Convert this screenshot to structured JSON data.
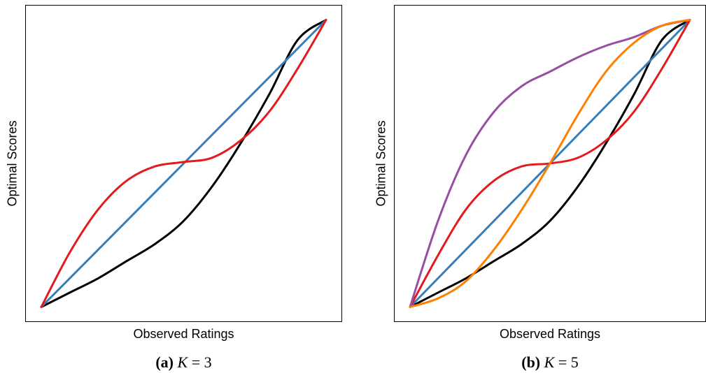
{
  "chart_data": [
    {
      "type": "line",
      "caption": {
        "tag": "(a)",
        "var": "K",
        "eq": " = ",
        "val": "3"
      },
      "xlabel": "Observed Ratings",
      "ylabel": "Optimal Scores",
      "xlim": [
        0,
        1
      ],
      "ylim": [
        -0.05,
        1.05
      ],
      "grid": false,
      "series": [
        {
          "color": "#000000",
          "x": [
            0,
            0.1,
            0.2,
            0.3,
            0.4,
            0.5,
            0.6,
            0.7,
            0.8,
            0.9,
            1.0
          ],
          "y": [
            0,
            0.05,
            0.1,
            0.16,
            0.22,
            0.3,
            0.42,
            0.57,
            0.74,
            0.93,
            1.0
          ]
        },
        {
          "color": "#377eb8",
          "x": [
            0,
            1
          ],
          "y": [
            0,
            1
          ]
        },
        {
          "color": "#e41a1c",
          "x": [
            0,
            0.1,
            0.2,
            0.3,
            0.4,
            0.5,
            0.6,
            0.7,
            0.8,
            0.9,
            1.0
          ],
          "y": [
            0,
            0.19,
            0.34,
            0.44,
            0.49,
            0.505,
            0.52,
            0.58,
            0.68,
            0.83,
            1.0
          ]
        }
      ]
    },
    {
      "type": "line",
      "caption": {
        "tag": "(b)",
        "var": "K",
        "eq": " = ",
        "val": "5"
      },
      "xlabel": "Observed Ratings",
      "ylabel": "Optimal Scores",
      "xlim": [
        0,
        1
      ],
      "ylim": [
        -0.05,
        1.05
      ],
      "grid": false,
      "series": [
        {
          "color": "#000000",
          "x": [
            0,
            0.1,
            0.2,
            0.3,
            0.4,
            0.5,
            0.6,
            0.7,
            0.8,
            0.9,
            1.0
          ],
          "y": [
            0,
            0.05,
            0.1,
            0.16,
            0.22,
            0.3,
            0.42,
            0.57,
            0.74,
            0.93,
            1.0
          ]
        },
        {
          "color": "#377eb8",
          "x": [
            0,
            1
          ],
          "y": [
            0,
            1
          ]
        },
        {
          "color": "#e41a1c",
          "x": [
            0,
            0.1,
            0.2,
            0.3,
            0.4,
            0.5,
            0.6,
            0.7,
            0.8,
            0.9,
            1.0
          ],
          "y": [
            0,
            0.18,
            0.34,
            0.44,
            0.49,
            0.5,
            0.52,
            0.58,
            0.68,
            0.83,
            1.0
          ]
        },
        {
          "color": "#984ea3",
          "x": [
            0,
            0.1,
            0.2,
            0.3,
            0.4,
            0.5,
            0.6,
            0.7,
            0.8,
            0.9,
            1.0
          ],
          "y": [
            0,
            0.3,
            0.53,
            0.68,
            0.77,
            0.82,
            0.87,
            0.91,
            0.94,
            0.98,
            1.0
          ]
        },
        {
          "color": "#ff7f00",
          "x": [
            0,
            0.1,
            0.2,
            0.3,
            0.4,
            0.5,
            0.6,
            0.7,
            0.8,
            0.9,
            1.0
          ],
          "y": [
            0,
            0.03,
            0.09,
            0.2,
            0.34,
            0.5,
            0.67,
            0.82,
            0.92,
            0.98,
            1.0
          ]
        }
      ]
    }
  ]
}
